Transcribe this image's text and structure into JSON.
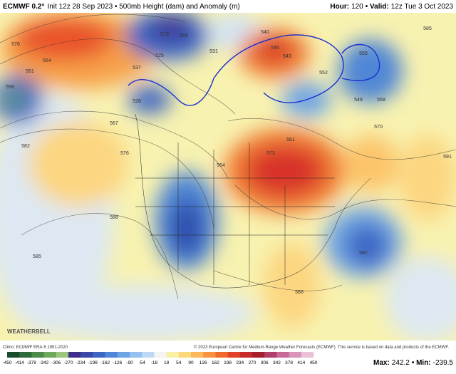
{
  "header": {
    "model": "ECMWF 0.2°",
    "init": "Init 12z 28 Sep 2023 • 500mb Height (dam) and Anomaly (m)",
    "hour_label": "Hour:",
    "hour": "120",
    "valid_label": "• Valid:",
    "valid": "12z Tue 3 Oct 2023"
  },
  "map": {
    "contour_labels": [
      "576",
      "558",
      "561",
      "564",
      "567",
      "582",
      "576",
      "588",
      "585",
      "519",
      "516",
      "525",
      "528",
      "537",
      "531",
      "540",
      "546",
      "543",
      "552",
      "555",
      "549",
      "558",
      "570",
      "561",
      "573",
      "564",
      "582",
      "588",
      "591",
      "585"
    ]
  },
  "footer": {
    "climo": "Climo: ECMWF ERA-5 1991-2020",
    "copyright": "© 2023 European Centre for Medium-Range Weather Forecasts (ECMWF). This service is based on data and products of the ECMWF.",
    "logo": "WEATHERBELL",
    "max_label": "Max:",
    "max": 242.2,
    "min_label": "• Min:",
    "min": -239.5
  },
  "colorbar": {
    "ticks": [
      -450,
      -414,
      -378,
      -342,
      -306,
      -270,
      -234,
      -198,
      -162,
      -126,
      -90,
      -54,
      -18,
      18,
      54,
      90,
      126,
      162,
      198,
      234,
      270,
      306,
      342,
      378,
      414,
      450
    ],
    "colors": [
      "#1a4d2e",
      "#2e6b3a",
      "#4b8a48",
      "#6fa85c",
      "#9cc57e",
      "#3f2f8c",
      "#3a49a8",
      "#3d66c4",
      "#4f86d6",
      "#6fa4e4",
      "#95c0ef",
      "#bcd8f4",
      "#f4f4f4",
      "#f9f0a8",
      "#fbd97a",
      "#fbb85a",
      "#f8923e",
      "#f06a2e",
      "#e0422a",
      "#c72a2a",
      "#a51f2e",
      "#b0406a",
      "#c76a95",
      "#d995ba",
      "#e9c2d8"
    ]
  }
}
